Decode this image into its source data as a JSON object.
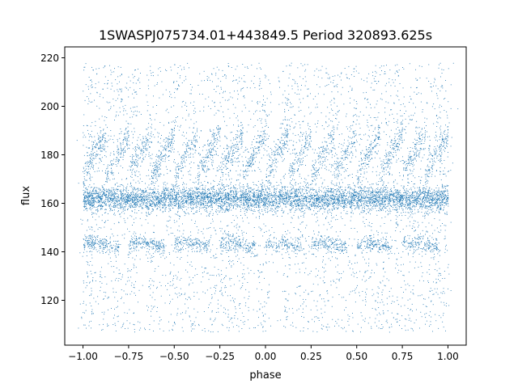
{
  "chart_data": {
    "type": "scatter",
    "title": "1SWASPJ075734.01+443849.5 Period 320893.625s",
    "xlabel": "phase",
    "ylabel": "flux",
    "xlim": [
      -1.1,
      1.1
    ],
    "ylim": [
      101.5,
      224.5
    ],
    "x_ticks": [
      -1.0,
      -0.75,
      -0.5,
      -0.25,
      0.0,
      0.25,
      0.5,
      0.75,
      1.0
    ],
    "x_tick_labels": [
      "−1.00",
      "−0.75",
      "−0.50",
      "−0.25",
      "0.00",
      "0.25",
      "0.50",
      "0.75",
      "1.00"
    ],
    "y_ticks": [
      120,
      140,
      160,
      180,
      200,
      220
    ],
    "y_tick_labels": [
      "120",
      "140",
      "160",
      "180",
      "200",
      "220"
    ],
    "grid": false,
    "legend": "none",
    "marker_color": "#1f77b4",
    "x_range": [
      -1.0,
      1.0
    ],
    "main_band_flux": 162,
    "lower_band_flux": 143,
    "upper_band_flux_range": [
      175,
      192
    ],
    "flux_range": [
      107,
      218
    ]
  }
}
